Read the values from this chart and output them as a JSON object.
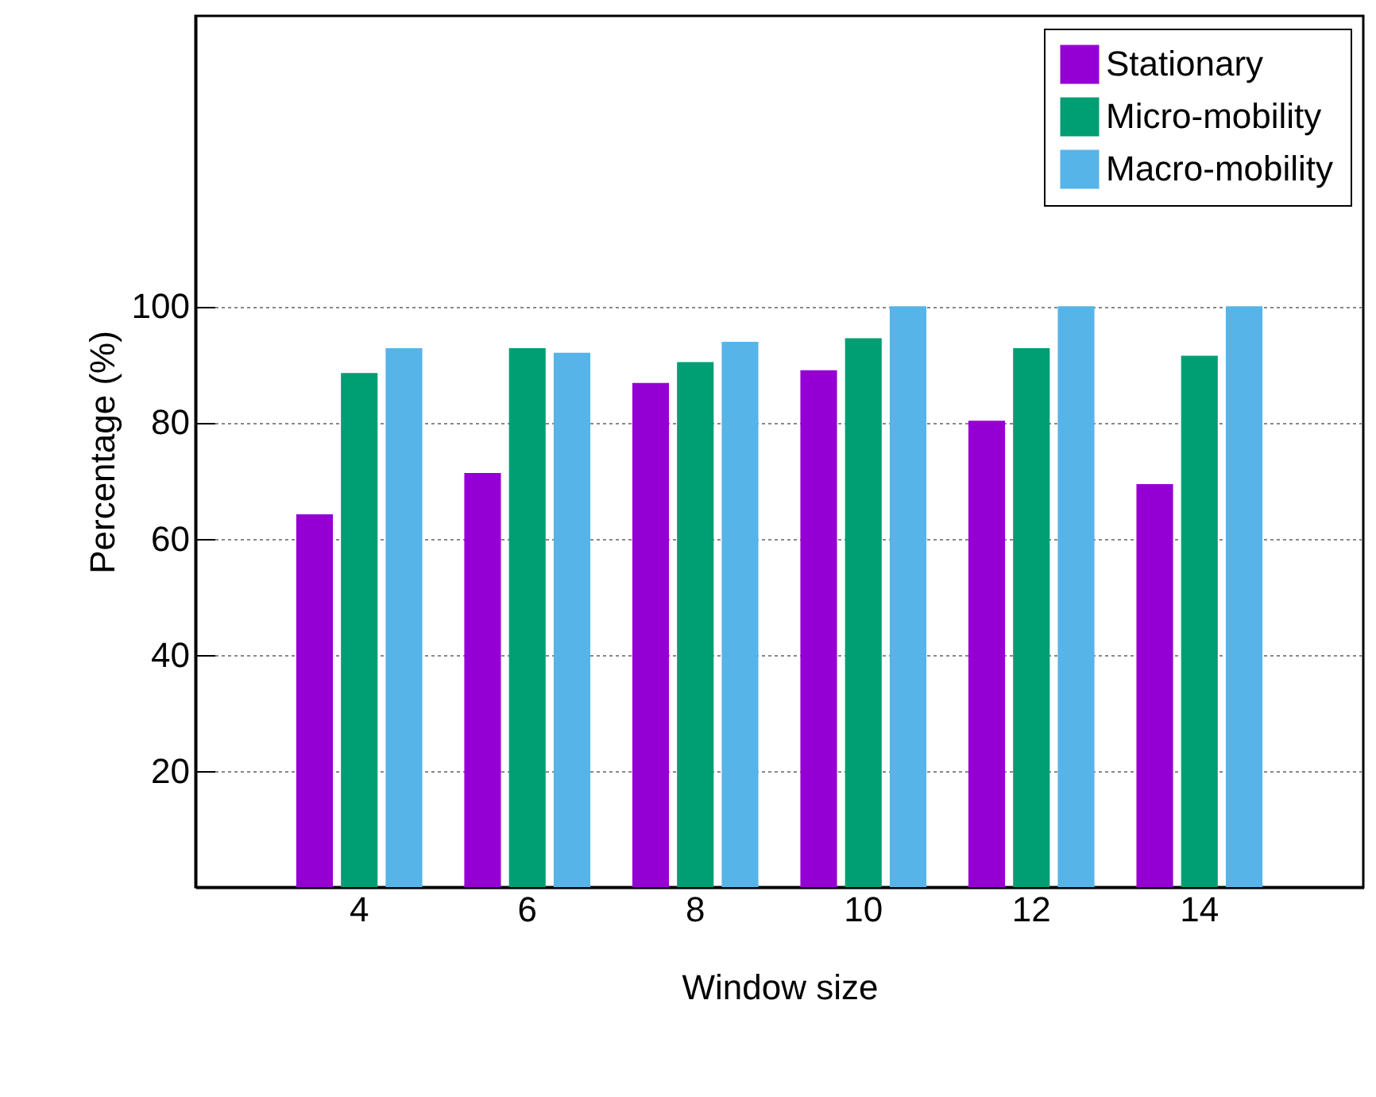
{
  "chart_data": {
    "type": "bar",
    "xlabel": "Window size",
    "ylabel": "Percentage (%)",
    "categories": [
      "4",
      "6",
      "8",
      "10",
      "12",
      "14"
    ],
    "series": [
      {
        "name": "Stationary",
        "color": "#9400d3",
        "values": [
          64.2,
          71.3,
          86.8,
          89.0,
          80.3,
          69.4
        ]
      },
      {
        "name": "Micro-mobility",
        "color": "#009e73",
        "values": [
          88.5,
          92.8,
          90.4,
          94.5,
          92.8,
          91.5
        ]
      },
      {
        "name": "Macro-mobility",
        "color": "#56b4e9",
        "values": [
          92.8,
          92.0,
          93.9,
          100,
          100,
          100
        ]
      }
    ],
    "ylim": [
      0,
      150
    ],
    "yticks": [
      20,
      40,
      60,
      80,
      100
    ],
    "grid": "y",
    "legend": "top right"
  }
}
